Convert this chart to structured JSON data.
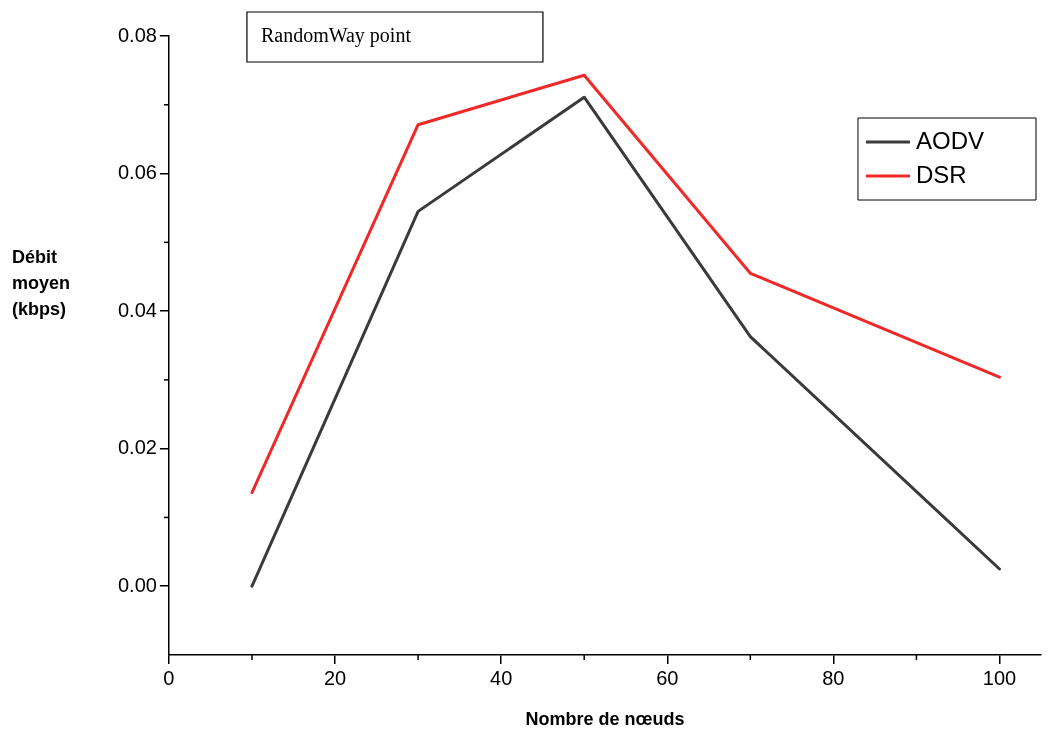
{
  "chart_data": {
    "type": "line",
    "title": "RandomWay point",
    "xlabel": "Nombre de nœuds",
    "ylabel": "Débit moyen (kbps)",
    "x": [
      10,
      30,
      50,
      70,
      100
    ],
    "series": [
      {
        "name": "AODV",
        "color": "#3a3a3a",
        "values": [
          0.0,
          0.0545,
          0.0711,
          0.0363,
          0.0025
        ]
      },
      {
        "name": "DSR",
        "color": "#f02828",
        "values": [
          0.0136,
          0.0671,
          0.0743,
          0.0455,
          0.0304
        ]
      }
    ],
    "xlim": [
      0,
      105
    ],
    "xticks": [
      0,
      20,
      40,
      60,
      80,
      100
    ],
    "ylim": [
      -0.01,
      0.08
    ],
    "yticks": [
      {
        "value": 0,
        "label": "0.00"
      },
      {
        "value": 0.02,
        "label": "0.02"
      },
      {
        "value": 0.04,
        "label": "0.04"
      },
      {
        "value": 0.06,
        "label": "0.06"
      },
      {
        "value": 0.08,
        "label": "0.08"
      }
    ],
    "grid": false,
    "legend": "top right",
    "marker": "none",
    "line_style": "solid"
  }
}
